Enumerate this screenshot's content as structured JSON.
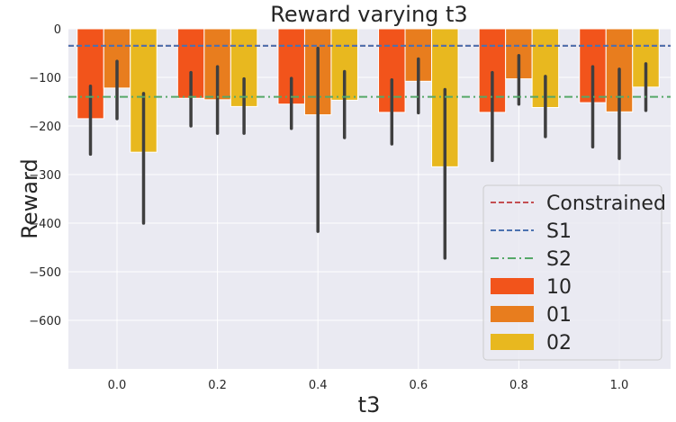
{
  "chart_data": {
    "type": "bar",
    "title": "Reward varying t3",
    "xlabel": "t3",
    "ylabel": "Reward",
    "categories": [
      "0.0",
      "0.2",
      "0.4",
      "0.6",
      "0.8",
      "1.0"
    ],
    "ylim": [
      -700,
      0
    ],
    "yticks": [
      0,
      -100,
      -200,
      -300,
      -400,
      -500,
      -600
    ],
    "series": [
      {
        "name": "10",
        "color": "#f2541b",
        "values": [
          -185,
          -143,
          -155,
          -172,
          -172,
          -152
        ],
        "err_low": [
          -258,
          -200,
          -205,
          -237,
          -271,
          -243
        ],
        "err_high": [
          -118,
          -90,
          -102,
          -105,
          -90,
          -78
        ]
      },
      {
        "name": "01",
        "color": "#e87d1e",
        "values": [
          -122,
          -146,
          -177,
          -108,
          -103,
          -171
        ],
        "err_low": [
          -185,
          -215,
          -417,
          -173,
          -155,
          -267
        ],
        "err_high": [
          -67,
          -78,
          -40,
          -62,
          -55,
          -83
        ]
      },
      {
        "name": "02",
        "color": "#e8b81f",
        "values": [
          -254,
          -160,
          -147,
          -284,
          -162,
          -120
        ],
        "err_low": [
          -400,
          -215,
          -224,
          -472,
          -222,
          -168
        ],
        "err_high": [
          -133,
          -103,
          -88,
          -125,
          -98,
          -72
        ]
      }
    ],
    "reference_lines": [
      {
        "name": "Constrained",
        "value": -35,
        "color": "#c44e52",
        "style": "dashed"
      },
      {
        "name": "S1",
        "value": -35,
        "color": "#4c72b0",
        "style": "dashed"
      },
      {
        "name": "S2",
        "value": -140,
        "color": "#55a868",
        "style": "dashdot"
      }
    ],
    "grid": true,
    "legend_position": "lower-right"
  }
}
